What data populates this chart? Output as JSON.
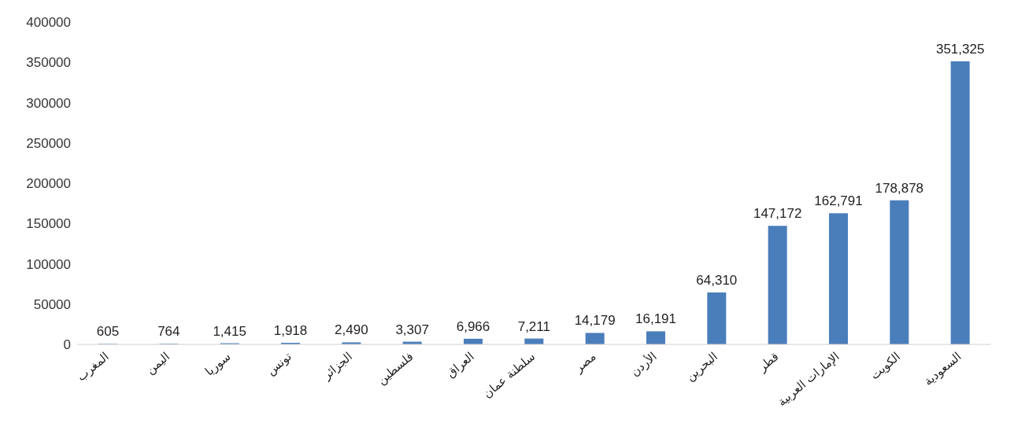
{
  "chart_data": {
    "type": "bar",
    "categories": [
      "المغرب",
      "اليمن",
      "سوريا",
      "تونس",
      "الجزائر",
      "فلسطين",
      "العراق",
      "سلطنة عمان",
      "مصر",
      "الأردن",
      "البحرين",
      "قطر",
      "الإمارات العربية",
      "الكويت",
      "السعودية"
    ],
    "values": [
      605,
      764,
      1415,
      1918,
      2490,
      3307,
      6966,
      7211,
      14179,
      16191,
      64310,
      147172,
      162791,
      178878,
      351325
    ],
    "value_labels": [
      "605",
      "764",
      "1,415",
      "1,918",
      "2,490",
      "3,307",
      "6,966",
      "7,211",
      "14,179",
      "16,191",
      "64,310",
      "147,172",
      "162,791",
      "178,878",
      "351,325"
    ],
    "color": "#4a7ebb",
    "ylim": [
      0,
      400000
    ],
    "yticks": [
      0,
      50000,
      100000,
      150000,
      200000,
      250000,
      300000,
      350000,
      400000
    ],
    "grid": false,
    "legend": false
  }
}
